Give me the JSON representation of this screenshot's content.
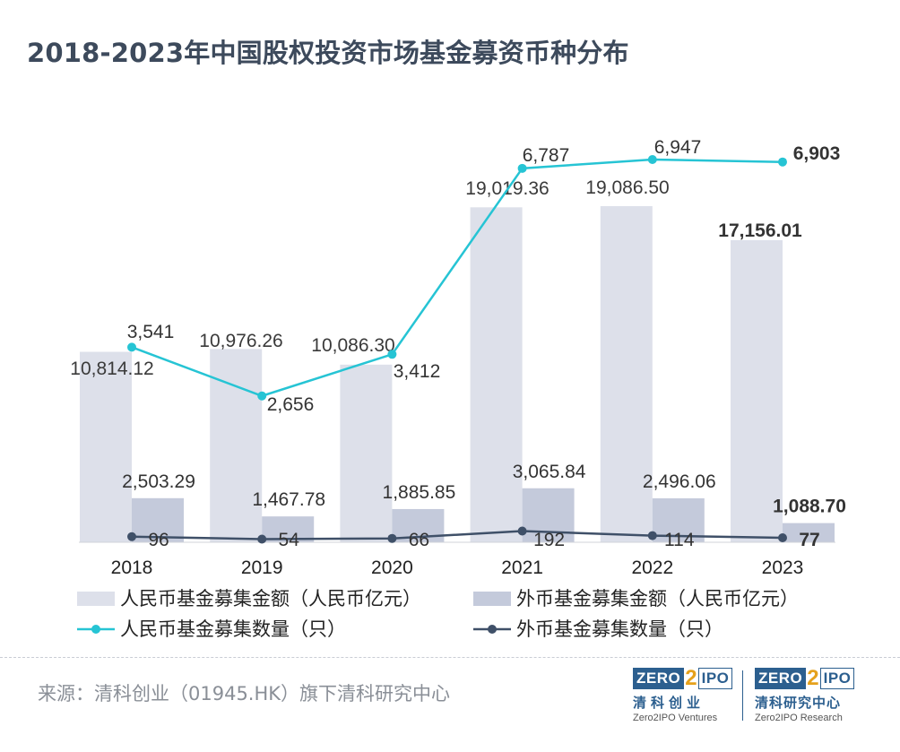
{
  "title": "2018-2023年中国股权投资市场基金募资币种分布",
  "chart_data": {
    "type": "bar+line",
    "title": "2018-2023年中国股权投资市场基金募资币种分布",
    "categories": [
      "2018",
      "2019",
      "2020",
      "2021",
      "2022",
      "2023"
    ],
    "bar_ylim": [
      0,
      20000
    ],
    "line_ylim": [
      0,
      8000
    ],
    "series": [
      {
        "name": "人民币基金募集金额（人民币亿元）",
        "kind": "bar",
        "color": "#dde0ea",
        "values": [
          10814.12,
          10976.26,
          10086.3,
          19019.36,
          19086.5,
          17156.01
        ],
        "labels": [
          "10,814.12",
          "10,976.26",
          "10,086.30",
          "19,019.36",
          "19,086.50",
          "17,156.01"
        ]
      },
      {
        "name": "外币基金募集金额（人民币亿元）",
        "kind": "bar",
        "color": "#c4cadb",
        "values": [
          2503.29,
          1467.78,
          1885.85,
          3065.84,
          2496.06,
          1088.7
        ],
        "labels": [
          "2,503.29",
          "1,467.78",
          "1,885.85",
          "3,065.84",
          "2,496.06",
          "1,088.70"
        ]
      },
      {
        "name": "人民币基金募集数量（只）",
        "kind": "line",
        "color": "#26c4d4",
        "values": [
          3541,
          2656,
          3412,
          6787,
          6947,
          6903
        ],
        "labels": [
          "3,541",
          "2,656",
          "3,412",
          "6,787",
          "6,947",
          "6,903"
        ]
      },
      {
        "name": "外币基金募集数量（只）",
        "kind": "line",
        "color": "#3f5068",
        "values": [
          96,
          54,
          66,
          192,
          114,
          77
        ],
        "labels": [
          "96",
          "54",
          "66",
          "192",
          "114",
          "77"
        ]
      }
    ]
  },
  "source": "来源：清科创业（01945.HK）旗下清科研究中心",
  "logos": [
    {
      "z": "ZERO",
      "two": "2",
      "ipo": "IPO",
      "cn": "清科创业",
      "en": "Zero2IPO Ventures"
    },
    {
      "z": "ZERO",
      "two": "2",
      "ipo": "IPO",
      "cn": "清科研究中心",
      "en": "Zero2IPO Research"
    }
  ]
}
